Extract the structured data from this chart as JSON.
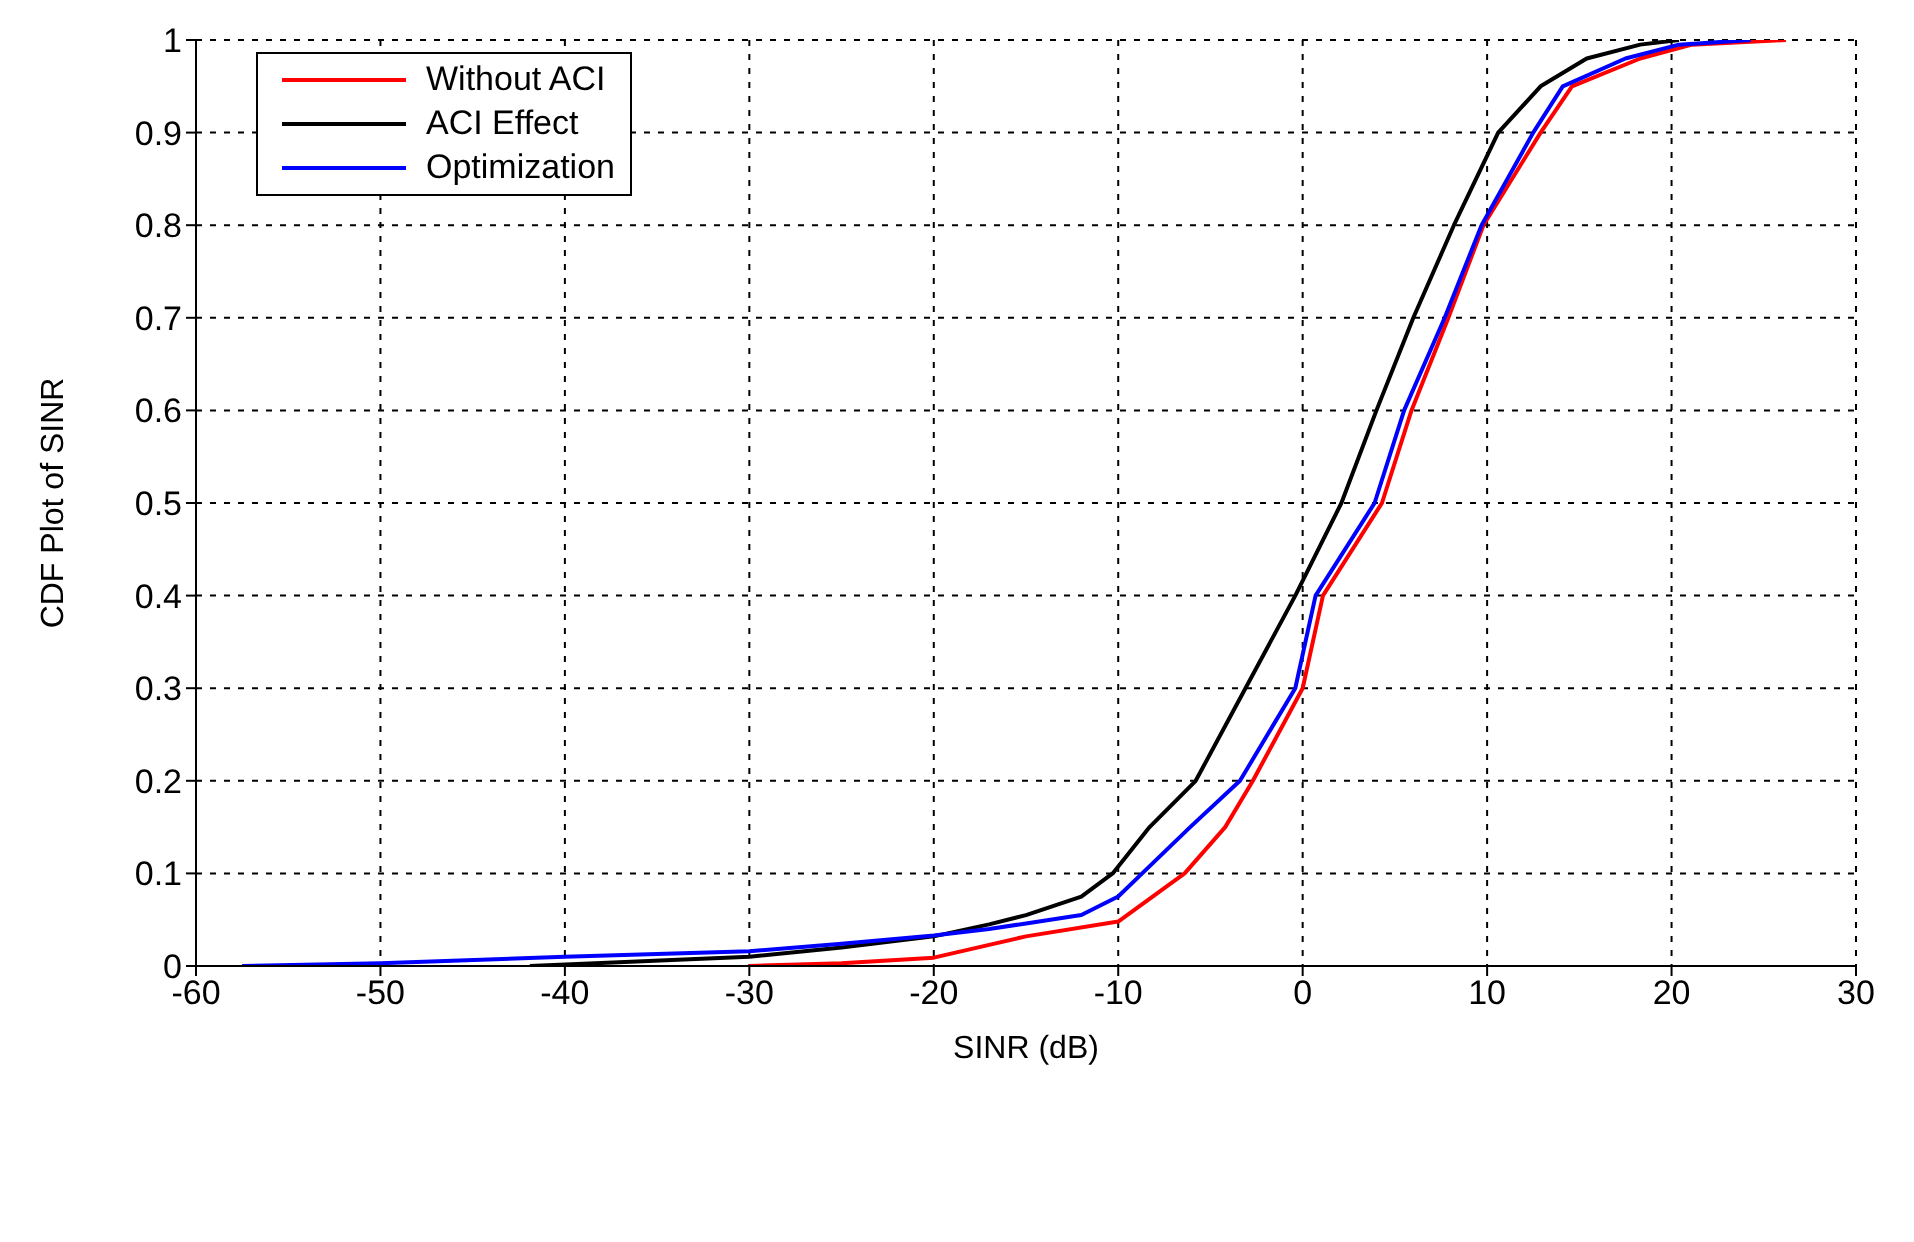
{
  "chart_data": {
    "type": "line",
    "xlabel": "SINR (dB)",
    "ylabel": "CDF Plot of SINR",
    "xlim": [
      -60,
      30
    ],
    "xticks": [
      -60,
      -50,
      -40,
      -30,
      -20,
      -10,
      0,
      10,
      20,
      30
    ],
    "ylim": [
      0,
      1
    ],
    "yticks": [
      0,
      0.1,
      0.2,
      0.3,
      0.4,
      0.5,
      0.6,
      0.7,
      0.8,
      0.9,
      1
    ],
    "grid": true,
    "legend": "top left",
    "marker": "none",
    "line_style": "solid",
    "series": [
      {
        "name": "Without ACI",
        "color": "#ff0000",
        "x": [
          -30,
          -25,
          -20,
          -15,
          -10,
          -6.4,
          -4.2,
          -2.7,
          0,
          1.1,
          4.3,
          5.9,
          7.9,
          9.8,
          12.9,
          14.6,
          18.3,
          21.1,
          26.2
        ],
        "values": [
          0,
          0.003,
          0.009,
          0.032,
          0.048,
          0.1,
          0.15,
          0.2,
          0.3,
          0.4,
          0.5,
          0.6,
          0.7,
          0.8,
          0.9,
          0.95,
          0.98,
          0.995,
          1
        ]
      },
      {
        "name": "ACI Effect",
        "color": "#000000",
        "x": [
          -41.9,
          -30,
          -25,
          -20,
          -17,
          -15,
          -12,
          -10.3,
          -8.3,
          -5.8,
          -3.1,
          -0.4,
          2.1,
          4,
          6,
          8.2,
          10.6,
          12.9,
          15.4,
          18.3,
          20.4
        ],
        "values": [
          0,
          0.01,
          0.02,
          0.032,
          0.045,
          0.055,
          0.075,
          0.1,
          0.15,
          0.2,
          0.3,
          0.4,
          0.5,
          0.6,
          0.7,
          0.8,
          0.9,
          0.95,
          0.98,
          0.995,
          1
        ]
      },
      {
        "name": "Optimization",
        "color": "#0000ff",
        "x": [
          -57.5,
          -50,
          -40,
          -30,
          -25,
          -20,
          -17,
          -15,
          -12,
          -10,
          -8.7,
          -6.1,
          -3.4,
          -0.4,
          0.7,
          3.9,
          5.5,
          7.7,
          9.7,
          12.5,
          14.1,
          17.5,
          20.4,
          24.3
        ],
        "values": [
          0,
          0.003,
          0.01,
          0.016,
          0.024,
          0.033,
          0.04,
          0.046,
          0.055,
          0.075,
          0.1,
          0.15,
          0.2,
          0.3,
          0.4,
          0.5,
          0.6,
          0.7,
          0.8,
          0.9,
          0.95,
          0.98,
          0.995,
          1
        ]
      }
    ]
  }
}
